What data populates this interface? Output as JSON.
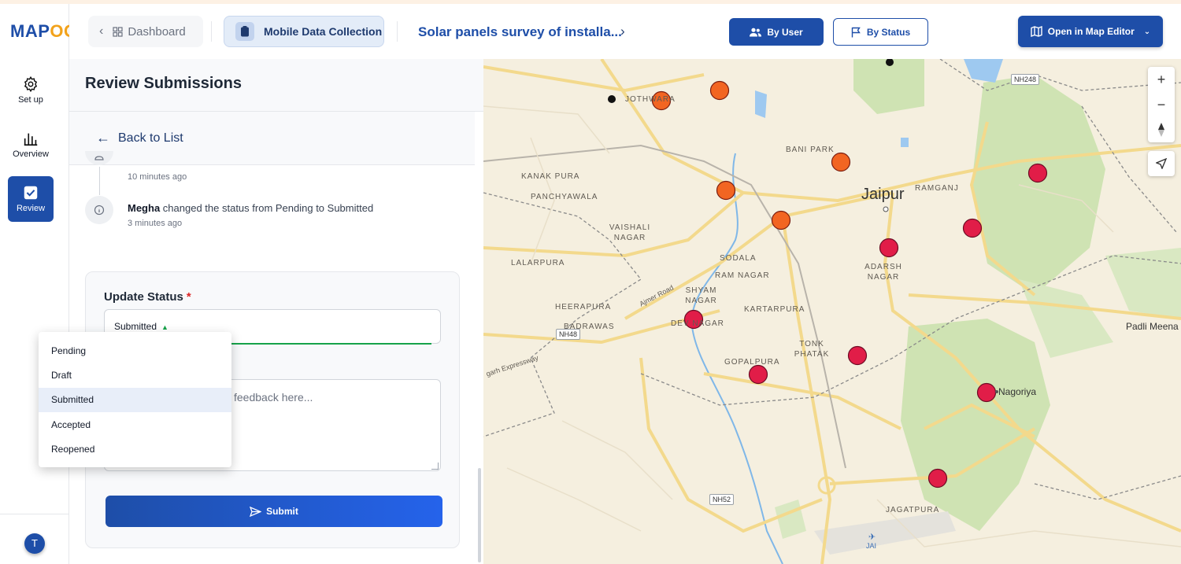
{
  "app": {
    "logo_main": "MAP",
    "logo_accent": "OG"
  },
  "rail": {
    "items": [
      {
        "label": "Set up",
        "icon": "gear-icon"
      },
      {
        "label": "Overview",
        "icon": "bar-chart-icon"
      },
      {
        "label": "Review",
        "icon": "checkbox-icon"
      }
    ],
    "avatar": "T"
  },
  "header": {
    "dashboard": "Dashboard",
    "module": "Mobile Data Collection",
    "survey_title": "Solar panels survey of installa...",
    "by_user": "By User",
    "by_status": "By Status",
    "open_map_editor": "Open in Map Editor"
  },
  "panel": {
    "title": "Review Submissions",
    "back": "Back to List",
    "timeline": [
      {
        "time": "10 minutes ago"
      },
      {
        "user": "Megha",
        "text": "changed the status from Pending to Submitted",
        "time": "3 minutes ago"
      }
    ],
    "form": {
      "status_label": "Update Status",
      "required": "*",
      "status_value": "Submitted",
      "feedback_placeholder": "feedback here...",
      "submit": "Submit"
    },
    "status_options": [
      "Pending",
      "Draft",
      "Submitted",
      "Accepted",
      "Reopened"
    ],
    "selected_option": "Submitted"
  },
  "map": {
    "labels": [
      "JOTHWARA",
      "BANI PARK",
      "KANAK PURA",
      "PANCHYAWALA",
      "RAMGANJ",
      "VAISHALI NAGAR",
      "SODALA",
      "LALARPURA",
      "RAM NAGAR",
      "ADARSH NAGAR",
      "SHYAM NAGAR",
      "HEERAPURA",
      "KARTARPURA",
      "BADRAWAS",
      "DEV NAGAR",
      "TONK PHATAK",
      "GOPALPURA",
      "JAGATPURA",
      "Ajmer Road",
      "garh Expressway",
      "JAI"
    ],
    "city": "Jaipur",
    "places": [
      "Padli Meena",
      "Nagoriya"
    ],
    "highways": [
      "NH248",
      "NH48",
      "NH52"
    ],
    "marker_colors": {
      "orange": "#f26522",
      "red": "#e11d48"
    },
    "controls": [
      "zoom-in",
      "zoom-out",
      "compass",
      "locate"
    ]
  }
}
